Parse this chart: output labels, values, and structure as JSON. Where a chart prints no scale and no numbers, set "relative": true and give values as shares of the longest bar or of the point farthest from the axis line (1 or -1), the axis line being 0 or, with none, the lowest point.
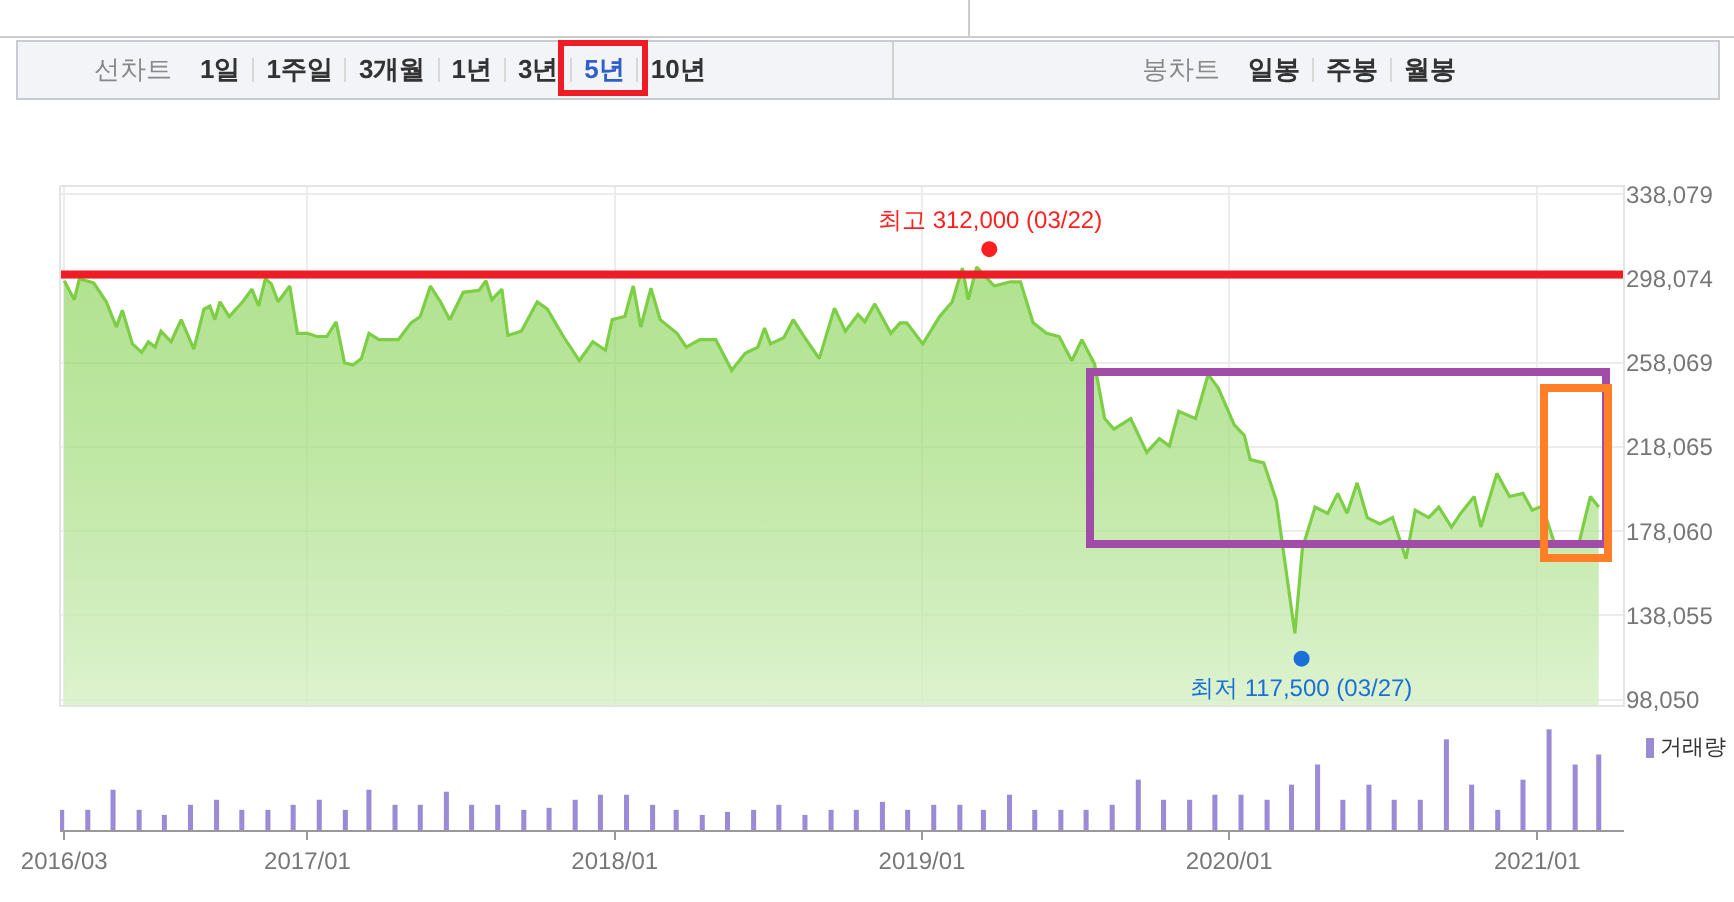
{
  "chart_data": [
    {
      "type": "other",
      "annotations": [
        "선차트",
        "1일",
        "1주일",
        "3개월",
        "1년",
        "3년",
        "5년",
        "10년",
        "봉차트",
        "일봉",
        "주봉",
        "월봉"
      ]
    },
    {
      "type": "area",
      "tick_labels": "y",
      "grid": true,
      "legend": false,
      "xlim": [
        "2016-03-13",
        "2021-04-14"
      ],
      "xticks": [
        {
          "value": "2016-03-18",
          "label": null
        },
        {
          "value": "2017-01-01",
          "label": null
        },
        {
          "value": "2018-01-01",
          "label": null
        },
        {
          "value": "2019-01-01",
          "label": null
        },
        {
          "value": "2020-01-01",
          "label": null
        },
        {
          "value": "2021-01-01",
          "label": null
        }
      ],
      "ylim": [
        95000,
        342000
      ],
      "yticks": [
        {
          "value": 98050,
          "label": "98,050"
        },
        {
          "value": 138055,
          "label": "138,055"
        },
        {
          "value": 178060,
          "label": "178,060"
        },
        {
          "value": 218065,
          "label": "218,065"
        },
        {
          "value": 258069,
          "label": "258,069"
        },
        {
          "value": 298074,
          "label": "298,074"
        },
        {
          "value": 338079,
          "label": "338,079"
        }
      ],
      "ref_lines": [
        {
          "axis": "y",
          "value": 300000,
          "color": "#ee1c25"
        }
      ],
      "annotations": [
        {
          "text": "최고 312,000 (03/22)",
          "x": "2019-03-22",
          "y": 312000
        },
        {
          "text": "최저 117,500 (03/27)",
          "x": "2020-03-27",
          "y": 117500
        }
      ],
      "series": [
        {
          "type": "area",
          "color": "#7ccf45",
          "marker": "none",
          "x": [
            "2016-03-18",
            "2016-03-30",
            "2016-04-05",
            "2016-04-22",
            "2016-05-07",
            "2016-05-19",
            "2016-05-26",
            "2016-06-07",
            "2016-06-18",
            "2016-06-26",
            "2016-07-04",
            "2016-07-11",
            "2016-07-23",
            "2016-08-04",
            "2016-08-19",
            "2016-08-31",
            "2016-09-07",
            "2016-09-13",
            "2016-09-19",
            "2016-09-30",
            "2016-10-16",
            "2016-10-27",
            "2016-11-04",
            "2016-11-12",
            "2016-11-19",
            "2016-11-27",
            "2016-12-11",
            "2016-12-20",
            "2017-01-01",
            "2017-01-12",
            "2017-01-24",
            "2017-02-04",
            "2017-02-14",
            "2017-02-24",
            "2017-03-06",
            "2017-03-15",
            "2017-03-27",
            "2017-04-19",
            "2017-05-04",
            "2017-05-15",
            "2017-05-27",
            "2017-06-08",
            "2017-06-19",
            "2017-07-05",
            "2017-07-24",
            "2017-08-01",
            "2017-08-08",
            "2017-08-20",
            "2017-08-27",
            "2017-09-12",
            "2017-10-01",
            "2017-10-13",
            "2017-11-01",
            "2017-11-20",
            "2017-12-06",
            "2017-12-21",
            "2017-12-29",
            "2018-01-13",
            "2018-01-23",
            "2018-02-01",
            "2018-02-13",
            "2018-02-24",
            "2018-03-16",
            "2018-03-27",
            "2018-04-12",
            "2018-05-01",
            "2018-05-20",
            "2018-06-05",
            "2018-06-20",
            "2018-06-28",
            "2018-07-05",
            "2018-07-21",
            "2018-08-01",
            "2018-08-13",
            "2018-09-01",
            "2018-09-19",
            "2018-10-02",
            "2018-10-17",
            "2018-10-25",
            "2018-11-06",
            "2018-11-25",
            "2018-12-06",
            "2018-12-14",
            "2019-01-02",
            "2019-01-22",
            "2019-02-06",
            "2019-02-18",
            "2019-02-25",
            "2019-03-07",
            "2019-03-28",
            "2019-04-16",
            "2019-04-28",
            "2019-05-13",
            "2019-05-29",
            "2019-06-13",
            "2019-06-28",
            "2019-07-10",
            "2019-07-25",
            "2019-08-06",
            "2019-08-17",
            "2019-09-06",
            "2019-09-25",
            "2019-10-10",
            "2019-10-22",
            "2019-11-02",
            "2019-11-22",
            "2019-12-07",
            "2019-12-19",
            "2020-01-07",
            "2020-01-19",
            "2020-01-26",
            "2020-02-11",
            "2020-02-26",
            "2020-03-19",
            "2020-03-28",
            "2020-04-12",
            "2020-04-27",
            "2020-05-09",
            "2020-05-20",
            "2020-06-01",
            "2020-06-13",
            "2020-06-28",
            "2020-07-13",
            "2020-07-29",
            "2020-08-09",
            "2020-08-25",
            "2020-09-06",
            "2020-09-21",
            "2020-10-02",
            "2020-10-18",
            "2020-10-26",
            "2020-11-14",
            "2020-11-29",
            "2020-12-15",
            "2020-12-26",
            "2021-01-07",
            "2021-01-22",
            "2021-02-19",
            "2021-03-05",
            "2021-03-15"
          ],
          "values": [
            297000,
            288000,
            298000,
            296000,
            287000,
            275000,
            283000,
            267000,
            263000,
            268000,
            265500,
            273000,
            268000,
            278500,
            264500,
            283500,
            285000,
            278500,
            287000,
            280000,
            287000,
            293000,
            285000,
            298000,
            295500,
            287000,
            294500,
            272000,
            272000,
            270500,
            270500,
            277500,
            258000,
            257000,
            260000,
            272000,
            269000,
            269000,
            277000,
            280000,
            294500,
            287000,
            278500,
            291500,
            292500,
            297000,
            288000,
            293000,
            271000,
            273000,
            287000,
            283500,
            270500,
            259000,
            268000,
            264000,
            278500,
            280000,
            294500,
            275000,
            293500,
            278500,
            272000,
            265500,
            269000,
            269000,
            254500,
            262500,
            265500,
            274500,
            267000,
            270000,
            278500,
            271000,
            260000,
            284000,
            273000,
            281000,
            277500,
            286000,
            272000,
            277000,
            277000,
            267000,
            280000,
            287000,
            303000,
            288000,
            303500,
            294500,
            296500,
            296500,
            277000,
            272000,
            270500,
            259000,
            269000,
            257500,
            231500,
            226500,
            231500,
            215500,
            222000,
            218500,
            235000,
            231500,
            252500,
            246000,
            228500,
            223500,
            212000,
            210500,
            192500,
            129500,
            170000,
            189500,
            186500,
            196000,
            186500,
            201000,
            184500,
            181500,
            184500,
            165000,
            188000,
            184500,
            189500,
            180000,
            186500,
            194500,
            180000,
            205500,
            194500,
            196000,
            188000,
            190000,
            171500,
            171500,
            194500,
            189500
          ]
        },
        {
          "type": "scatter",
          "marker": "circle",
          "colors": [
            "#ff1f1f",
            "#1a6fd8"
          ],
          "x": [
            "2019-03-22",
            "2020-03-27"
          ],
          "values": [
            312000,
            117500
          ]
        }
      ]
    },
    {
      "type": "bar",
      "relative": true,
      "tick_labels": "x",
      "legend": "top right",
      "xlim": [
        "2016-03-13",
        "2021-04-14"
      ],
      "xticks": [
        {
          "value": "2016-03-18",
          "label": "2016/03"
        },
        {
          "value": "2017-01-01",
          "label": "2017/01"
        },
        {
          "value": "2018-01-01",
          "label": "2018/01"
        },
        {
          "value": "2019-01-01",
          "label": "2019/01"
        },
        {
          "value": "2020-01-01",
          "label": "2020/01"
        },
        {
          "value": "2021-01-01",
          "label": "2021/01"
        }
      ],
      "x": [
        "2016-03-15",
        "2016-04-15",
        "2016-05-15",
        "2016-06-15",
        "2016-07-15",
        "2016-08-15",
        "2016-09-15",
        "2016-10-15",
        "2016-11-15",
        "2016-12-15",
        "2017-01-15",
        "2017-02-15",
        "2017-03-15",
        "2017-04-15",
        "2017-05-15",
        "2017-06-15",
        "2017-07-15",
        "2017-08-15",
        "2017-09-15",
        "2017-10-15",
        "2017-11-15",
        "2017-12-15",
        "2018-01-15",
        "2018-02-15",
        "2018-03-15",
        "2018-04-15",
        "2018-05-15",
        "2018-06-15",
        "2018-07-15",
        "2018-08-15",
        "2018-09-15",
        "2018-10-15",
        "2018-11-15",
        "2018-12-15",
        "2019-01-15",
        "2019-02-15",
        "2019-03-15",
        "2019-04-15",
        "2019-05-15",
        "2019-06-15",
        "2019-07-15",
        "2019-08-15",
        "2019-09-15",
        "2019-10-15",
        "2019-11-15",
        "2019-12-15",
        "2020-01-15",
        "2020-02-15",
        "2020-03-15",
        "2020-04-15",
        "2020-05-15",
        "2020-06-15",
        "2020-07-15",
        "2020-08-15",
        "2020-09-15",
        "2020-10-15",
        "2020-11-15",
        "2020-12-15",
        "2021-01-15",
        "2021-02-15",
        "2021-03-15"
      ],
      "series": [
        {
          "name": "거래량",
          "color": "#9b8bd6",
          "values": [
            0.2,
            0.2,
            0.4,
            0.2,
            0.15,
            0.25,
            0.3,
            0.2,
            0.2,
            0.25,
            0.3,
            0.2,
            0.4,
            0.25,
            0.25,
            0.38,
            0.25,
            0.25,
            0.2,
            0.22,
            0.3,
            0.35,
            0.35,
            0.25,
            0.2,
            0.15,
            0.18,
            0.2,
            0.25,
            0.15,
            0.2,
            0.2,
            0.28,
            0.2,
            0.25,
            0.25,
            0.2,
            0.35,
            0.2,
            0.2,
            0.2,
            0.25,
            0.5,
            0.3,
            0.3,
            0.35,
            0.35,
            0.3,
            0.45,
            0.65,
            0.3,
            0.45,
            0.3,
            0.3,
            0.9,
            0.45,
            0.2,
            0.5,
            1.0,
            0.65,
            0.75
          ]
        }
      ]
    }
  ]
}
